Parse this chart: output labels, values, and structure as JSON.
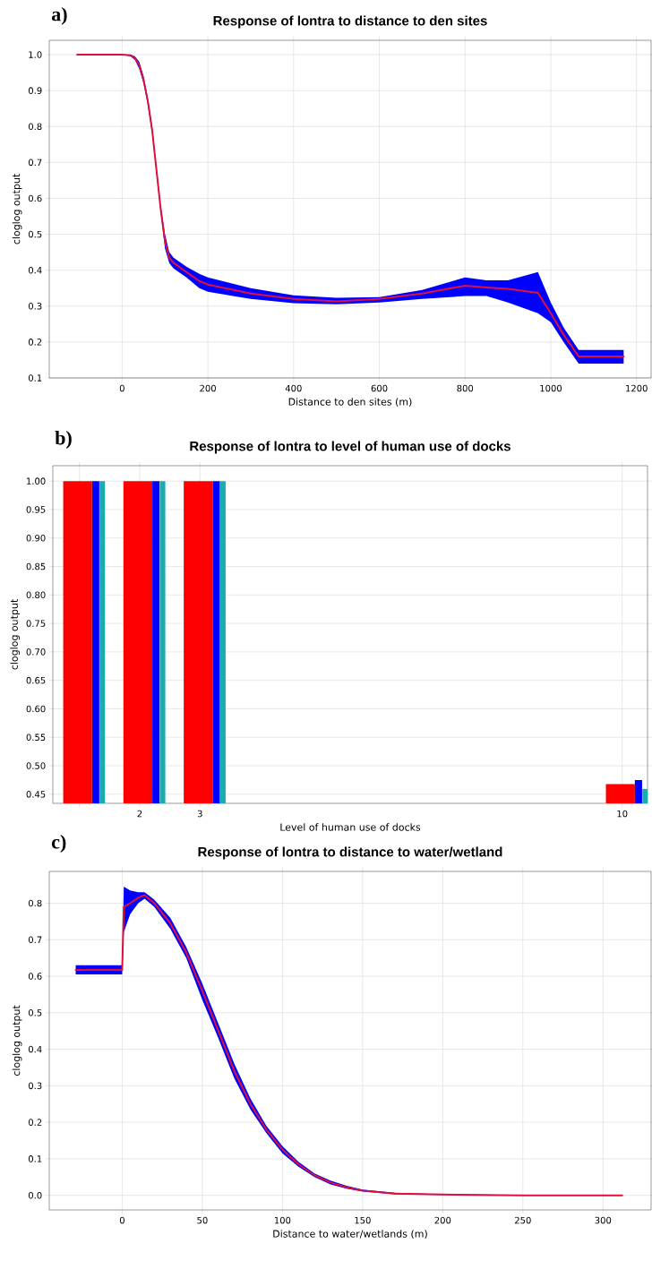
{
  "chart_data": [
    {
      "type": "line",
      "title": "Response of lontra to distance to den sites",
      "xlabel": "Distance to den sites (m)",
      "ylabel": "cloglog output",
      "annotations": [
        "a)"
      ],
      "grid": true,
      "xlim": [
        -170,
        1234
      ],
      "ylim": [
        0.1,
        1.04
      ],
      "xticks": [
        0,
        200,
        400,
        600,
        800,
        1000,
        1200
      ],
      "yticks": [
        0.1,
        0.2,
        0.3,
        0.4,
        0.5,
        0.6,
        0.7,
        0.8,
        0.9,
        {
          "value": 1,
          "label": "1.0"
        }
      ],
      "x": [
        -105,
        0,
        20,
        30,
        40,
        50,
        60,
        70,
        80,
        90,
        100,
        110,
        120,
        150,
        180,
        200,
        300,
        400,
        500,
        600,
        700,
        800,
        850,
        900,
        970,
        1000,
        1030,
        1065,
        1170
      ],
      "series": [
        {
          "color": "#e0103a",
          "values": [
            1.0,
            1.0,
            0.998,
            0.99,
            0.97,
            0.93,
            0.87,
            0.79,
            0.68,
            0.57,
            0.48,
            0.435,
            0.42,
            0.395,
            0.37,
            0.36,
            0.335,
            0.32,
            0.313,
            0.32,
            0.335,
            0.357,
            0.352,
            0.348,
            0.337,
            0.28,
            0.22,
            0.16,
            0.16
          ],
          "lower": [
            1.0,
            1.0,
            0.995,
            0.985,
            0.96,
            0.92,
            0.86,
            0.78,
            0.67,
            0.56,
            0.46,
            0.42,
            0.405,
            0.38,
            0.35,
            0.34,
            0.32,
            0.308,
            0.305,
            0.31,
            0.32,
            0.328,
            0.328,
            0.31,
            0.28,
            0.255,
            0.2,
            0.14,
            0.14
          ],
          "upper": [
            1.0,
            1.0,
            1.0,
            0.995,
            0.98,
            0.94,
            0.88,
            0.8,
            0.69,
            0.58,
            0.5,
            0.45,
            0.435,
            0.41,
            0.39,
            0.38,
            0.35,
            0.33,
            0.323,
            0.325,
            0.345,
            0.38,
            0.372,
            0.372,
            0.395,
            0.31,
            0.24,
            0.178,
            0.178
          ]
        }
      ]
    },
    {
      "type": "bar",
      "title": "Response of lontra to level of human use of docks",
      "xlabel": "Level of human use of docks",
      "ylabel": "cloglog output",
      "annotations": [
        "b)"
      ],
      "grid": true,
      "xlim": [
        0.56,
        10.42
      ],
      "ylim": [
        0.434,
        1.027
      ],
      "xticks": [
        {
          "value": 1,
          "label": null
        },
        2,
        3,
        10
      ],
      "yticks": [
        0.45,
        {
          "value": 0.5,
          "label": "0.50"
        },
        0.55,
        {
          "value": 0.6,
          "label": "0.60"
        },
        0.65,
        {
          "value": 0.7,
          "label": "0.70"
        },
        0.75,
        {
          "value": 0.8,
          "label": "0.80"
        },
        0.85,
        {
          "value": 0.9,
          "label": "0.90"
        },
        0.95,
        {
          "value": 1,
          "label": "1.00"
        }
      ],
      "x": [
        1,
        2,
        3,
        10
      ],
      "series": [
        {
          "color": "#ff0000",
          "values": [
            1.0,
            1.0,
            1.0,
            0.468
          ]
        },
        {
          "color": "#0000ff",
          "values": [
            1.0,
            1.0,
            1.0,
            0.475
          ]
        },
        {
          "color": "#1aadad",
          "values": [
            1.0,
            1.0,
            1.0,
            0.459
          ]
        }
      ]
    },
    {
      "type": "line",
      "title": "Response of lontra to distance to water/wetland",
      "xlabel": "Distance to water/wetlands (m)",
      "ylabel": "cloglog output",
      "annotations": [
        "c)"
      ],
      "grid": true,
      "xlim": [
        -45.5,
        330
      ],
      "ylim": [
        -0.04,
        0.887
      ],
      "xticks": [
        0,
        50,
        100,
        150,
        200,
        250,
        300
      ],
      "yticks": [
        {
          "value": 0,
          "label": "0.0"
        },
        0.1,
        0.2,
        0.3,
        0.4,
        0.5,
        0.6,
        0.7,
        0.8
      ],
      "x": [
        -29,
        0,
        1,
        5,
        10,
        14,
        20,
        30,
        40,
        50,
        60,
        70,
        80,
        90,
        100,
        110,
        120,
        130,
        140,
        150,
        170,
        200,
        250,
        312
      ],
      "series": [
        {
          "color": "#e0103a",
          "values": [
            0.617,
            0.617,
            0.79,
            0.8,
            0.815,
            0.822,
            0.8,
            0.745,
            0.665,
            0.56,
            0.45,
            0.34,
            0.25,
            0.18,
            0.125,
            0.085,
            0.055,
            0.035,
            0.022,
            0.013,
            0.005,
            0.002,
            0,
            0
          ],
          "lower": [
            0.605,
            0.605,
            0.72,
            0.77,
            0.8,
            0.812,
            0.79,
            0.73,
            0.65,
            0.535,
            0.43,
            0.32,
            0.235,
            0.17,
            0.115,
            0.078,
            0.05,
            0.03,
            0.018,
            0.01,
            0.003,
            0.001,
            0,
            0
          ],
          "upper": [
            0.63,
            0.63,
            0.845,
            0.835,
            0.83,
            0.83,
            0.81,
            0.76,
            0.68,
            0.58,
            0.47,
            0.36,
            0.265,
            0.19,
            0.135,
            0.092,
            0.06,
            0.04,
            0.026,
            0.016,
            0.007,
            0.003,
            0.001,
            0.001
          ]
        }
      ]
    }
  ]
}
